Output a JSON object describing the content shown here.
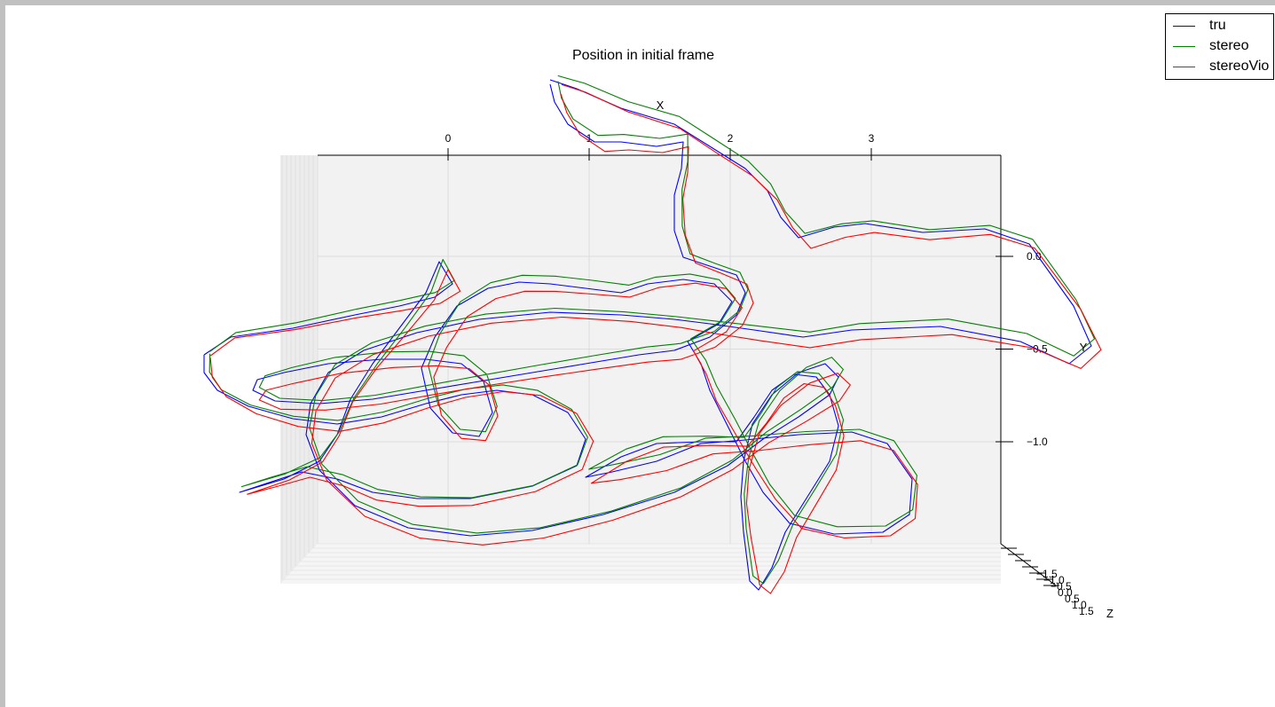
{
  "chart_data": {
    "type": "line",
    "projection": "3d",
    "title": "Position in initial frame",
    "x_axis": {
      "label": "X",
      "ticks": [
        "0",
        "1",
        "2",
        "3"
      ]
    },
    "y_axis": {
      "label": "Y",
      "ticks": [
        "0.0",
        "−0.5",
        "−1.0"
      ]
    },
    "z_axis": {
      "label": "Z",
      "ticks": [
        "−1.5",
        "−1.0",
        "−0.5",
        "0.0",
        "0.5",
        "1.0",
        "1.5"
      ]
    },
    "grid": true,
    "legend_position": "top-right",
    "series": [
      {
        "name": "tru",
        "color": "#0000ff"
      },
      {
        "name": "stereo",
        "color": "#008000"
      },
      {
        "name": "stereoVio",
        "color": "#ff0000"
      }
    ]
  }
}
